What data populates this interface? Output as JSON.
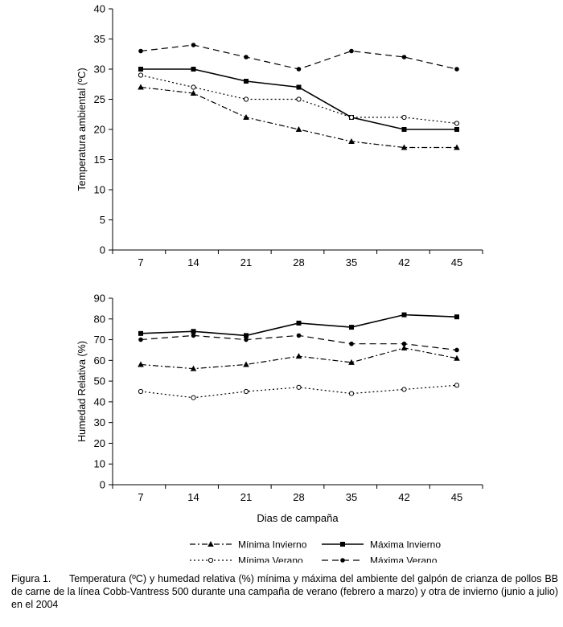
{
  "chart_data": [
    {
      "type": "line",
      "title": "",
      "xlabel": "",
      "ylabel": "Temperatura ambiental (ºC)",
      "ylim": [
        0,
        40
      ],
      "yticks": [
        0,
        5,
        10,
        15,
        20,
        25,
        30,
        35,
        40
      ],
      "categories": [
        "7",
        "14",
        "21",
        "28",
        "35",
        "42",
        "45"
      ],
      "grid": false,
      "series": [
        {
          "name": "Mínima Invierno",
          "values": [
            27,
            26,
            22,
            20,
            18,
            17,
            17
          ],
          "marker": "triangle",
          "dash": "dashdot",
          "color": "#000000"
        },
        {
          "name": "Máxima Invierno",
          "values": [
            30,
            30,
            28,
            27,
            22,
            20,
            20
          ],
          "marker": "square",
          "dash": "solid",
          "color": "#000000"
        },
        {
          "name": "Mínima Verano",
          "values": [
            29,
            27,
            25,
            25,
            22,
            22,
            21
          ],
          "marker": "circle-open",
          "dash": "dotted",
          "color": "#000000"
        },
        {
          "name": "Máxima Verano",
          "values": [
            33,
            34,
            32,
            30,
            33,
            32,
            30
          ],
          "marker": "circle",
          "dash": "dashed",
          "color": "#000000"
        }
      ]
    },
    {
      "type": "line",
      "title": "",
      "xlabel": "Dias de campaña",
      "ylabel": "Humedad Relativa (%)",
      "ylim": [
        0,
        90
      ],
      "yticks": [
        0,
        10,
        20,
        30,
        40,
        50,
        60,
        70,
        80,
        90
      ],
      "categories": [
        "7",
        "14",
        "21",
        "28",
        "35",
        "42",
        "45"
      ],
      "grid": false,
      "legend_position": "bottom",
      "series": [
        {
          "name": "Mínima Invierno",
          "values": [
            58,
            56,
            58,
            62,
            59,
            66,
            61
          ],
          "marker": "triangle",
          "dash": "dashdot",
          "color": "#000000"
        },
        {
          "name": "Máxima Invierno",
          "values": [
            73,
            74,
            72,
            78,
            76,
            82,
            81
          ],
          "marker": "square",
          "dash": "solid",
          "color": "#000000"
        },
        {
          "name": "Mínima Verano",
          "values": [
            45,
            42,
            45,
            47,
            44,
            46,
            48
          ],
          "marker": "circle-open",
          "dash": "dotted",
          "color": "#000000"
        },
        {
          "name": "Máxima Verano",
          "values": [
            70,
            72,
            70,
            72,
            68,
            68,
            65
          ],
          "marker": "circle",
          "dash": "dashed",
          "color": "#000000"
        }
      ]
    }
  ],
  "caption": {
    "label": "Figura 1.",
    "text": "Temperatura (ºC) y humedad relativa (%) mínima y máxima del ambiente del galpón de crianza de pollos BB de carne de la línea Cobb-Vantress 500 durante una campaña de verano (febrero a marzo) y otra de invierno (junio a julio) en el 2004"
  }
}
